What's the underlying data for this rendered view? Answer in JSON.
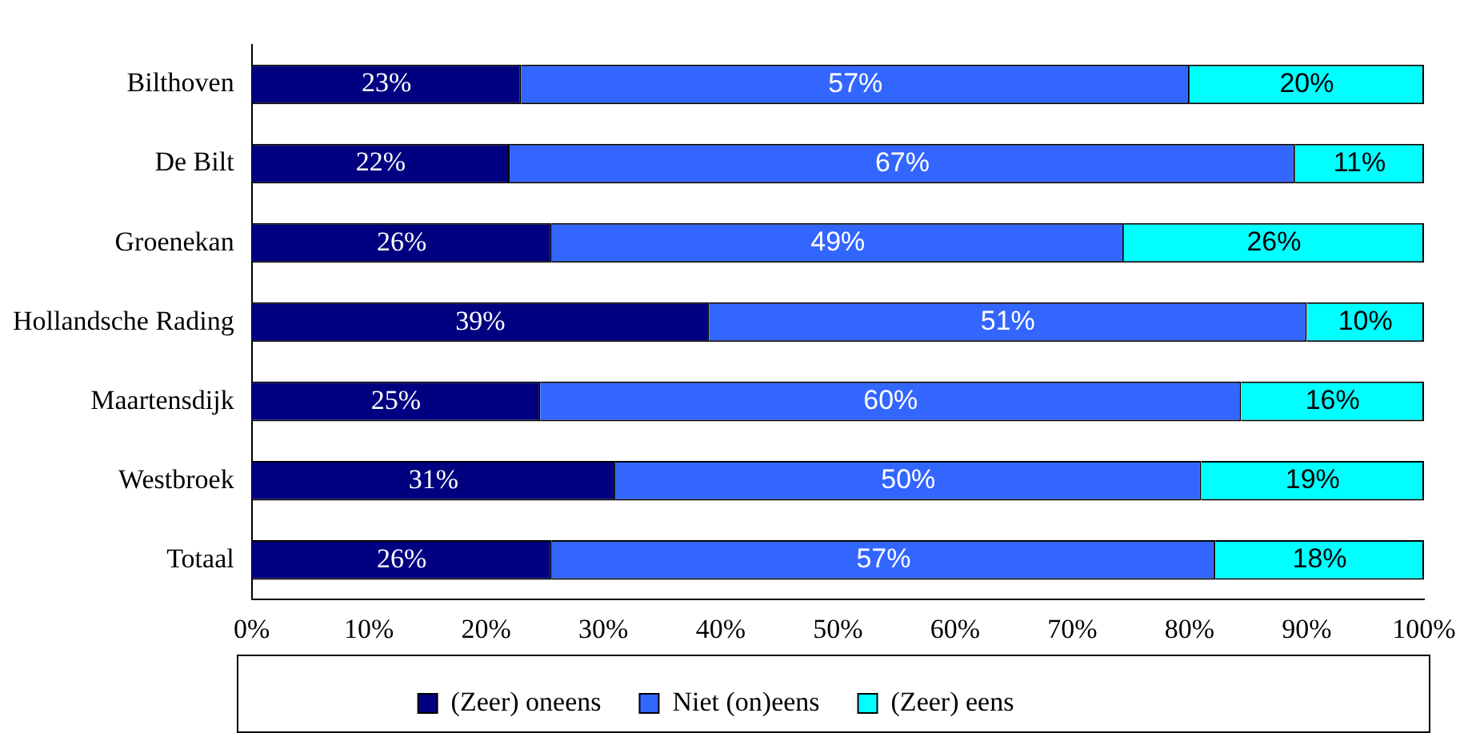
{
  "chart_data": {
    "type": "bar",
    "orientation": "horizontal",
    "stacked": true,
    "categories": [
      "Bilthoven",
      "De Bilt",
      "Groenekan",
      "Hollandsche Rading",
      "Maartensdijk",
      "Westbroek",
      "Totaal"
    ],
    "series": [
      {
        "name": "(Zeer) oneens",
        "color": "#000080",
        "values": [
          23,
          22,
          25.6,
          39,
          24.6,
          31,
          25.6
        ],
        "value_labels": [
          "23%",
          "22%",
          "26%",
          "39%",
          "25%",
          "31%",
          "26%"
        ]
      },
      {
        "name": "Niet (on)eens",
        "color": "#3366ff",
        "values": [
          57,
          67,
          48.8,
          51,
          59.8,
          50,
          56.6
        ],
        "value_labels": [
          "57%",
          "67%",
          "49%",
          "51%",
          "60%",
          "50%",
          "57%"
        ]
      },
      {
        "name": "(Zeer) eens",
        "color": "#00ffff",
        "values": [
          20,
          11,
          25.6,
          10,
          15.6,
          19,
          17.8
        ],
        "value_labels": [
          "20%",
          "11%",
          "26%",
          "10%",
          "16%",
          "19%",
          "18%"
        ]
      }
    ],
    "xlim": [
      0,
      100
    ],
    "xticks": [
      {
        "value": 0,
        "label": "0%"
      },
      {
        "value": 10,
        "label": "10%"
      },
      {
        "value": 20,
        "label": "20%"
      },
      {
        "value": 30,
        "label": "30%"
      },
      {
        "value": 40,
        "label": "40%"
      },
      {
        "value": 50,
        "label": "50%"
      },
      {
        "value": 60,
        "label": "60%"
      },
      {
        "value": 70,
        "label": "70%"
      },
      {
        "value": 80,
        "label": "80%"
      },
      {
        "value": 90,
        "label": "90%"
      },
      {
        "value": 100,
        "label": "100%"
      }
    ],
    "grid": false,
    "legend": "bottom"
  }
}
